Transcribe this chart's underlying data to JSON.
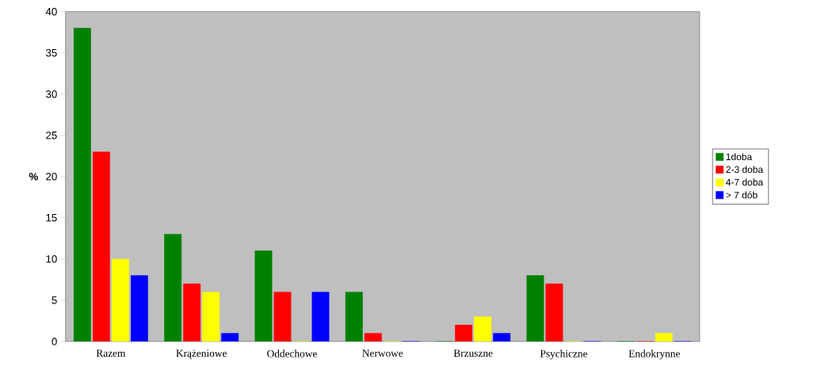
{
  "chart_data": {
    "type": "bar",
    "ylabel": "%",
    "categories": [
      "Razem",
      "Krążeniowe",
      "Oddechowe",
      "Nerwowe",
      "Brzuszne",
      "Psychiczne",
      "Endokrynne"
    ],
    "series": [
      {
        "name": "1doba",
        "color": "#008000",
        "values": [
          38,
          13,
          11,
          6,
          0,
          8,
          0
        ]
      },
      {
        "name": "2-3 doba",
        "color": "#ff0000",
        "values": [
          23,
          7,
          6,
          1,
          2,
          7,
          0
        ]
      },
      {
        "name": "4-7 doba",
        "color": "#ffff00",
        "values": [
          10,
          6,
          0,
          0,
          3,
          0,
          1
        ]
      },
      {
        "name": "> 7 dób",
        "color": "#0000ff",
        "values": [
          8,
          1,
          6,
          0,
          1,
          0,
          0
        ]
      }
    ],
    "ylim": [
      0,
      40
    ],
    "yticks": [
      0,
      5,
      10,
      15,
      20,
      25,
      30,
      35,
      40
    ],
    "grid": false,
    "legend": "right"
  }
}
